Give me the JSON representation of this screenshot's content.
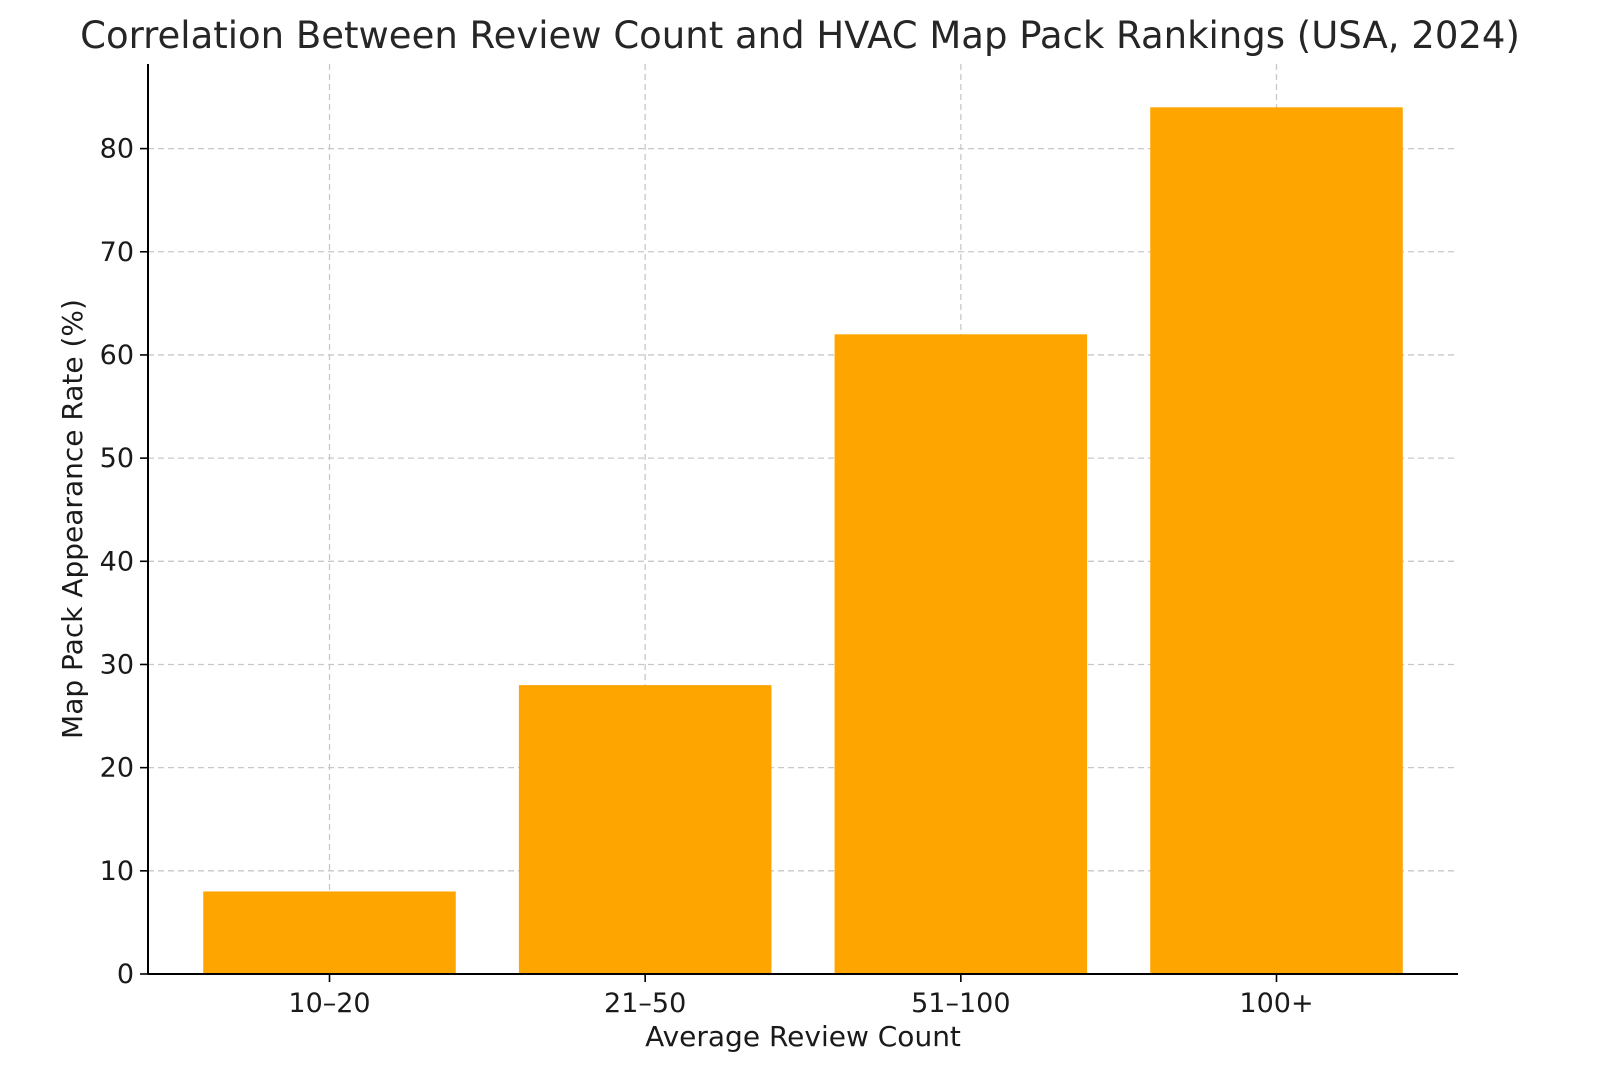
{
  "chart_data": {
    "type": "bar",
    "title": "Correlation Between Review Count and HVAC Map Pack Rankings (USA, 2024)",
    "xlabel": "Average Review Count",
    "ylabel": "Map Pack Appearance Rate (%)",
    "categories": [
      "10–20",
      "21–50",
      "51–100",
      "100+"
    ],
    "values": [
      8,
      28,
      62,
      84
    ],
    "ylim": [
      0,
      88.2
    ],
    "yticks": [
      0,
      10,
      20,
      30,
      40,
      50,
      60,
      70,
      80
    ],
    "bar_color": "#FFA500",
    "grid": true,
    "legend": "none"
  }
}
